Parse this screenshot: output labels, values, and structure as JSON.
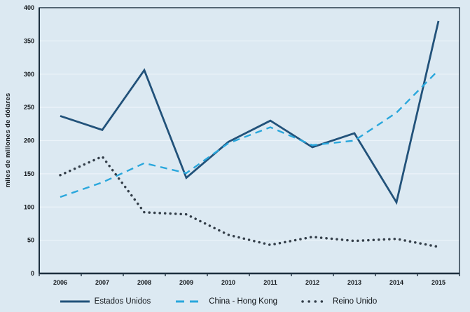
{
  "chart_data": {
    "type": "line",
    "title": "",
    "ylabel": "miles de millones de dólares",
    "xlabel": "",
    "categories": [
      "2006",
      "2007",
      "2008",
      "2009",
      "2010",
      "2011",
      "2012",
      "2013",
      "2014",
      "2015"
    ],
    "ylim": [
      0,
      400
    ],
    "yticks": [
      0,
      50,
      100,
      150,
      200,
      250,
      300,
      350,
      400
    ],
    "grid": true,
    "legend_position": "bottom",
    "series": [
      {
        "name": "Estados Unidos",
        "style": "solid",
        "color": "#22527a",
        "values": [
          237,
          216,
          306,
          144,
          198,
          230,
          190,
          211,
          107,
          380
        ]
      },
      {
        "name": "China - Hong Kong",
        "style": "dashed",
        "color": "#2aa7dc",
        "values": [
          115,
          137,
          166,
          151,
          196,
          220,
          193,
          200,
          242,
          306
        ]
      },
      {
        "name": "Reino Unido",
        "style": "dotted",
        "color": "#333e49",
        "values": [
          148,
          176,
          92,
          89,
          58,
          43,
          55,
          49,
          52,
          40
        ]
      }
    ]
  },
  "colors": {
    "background": "#dce9f2",
    "gridline": "#ebf3f9",
    "axis": "#1c2f3e",
    "tick_text": "#14181c"
  }
}
